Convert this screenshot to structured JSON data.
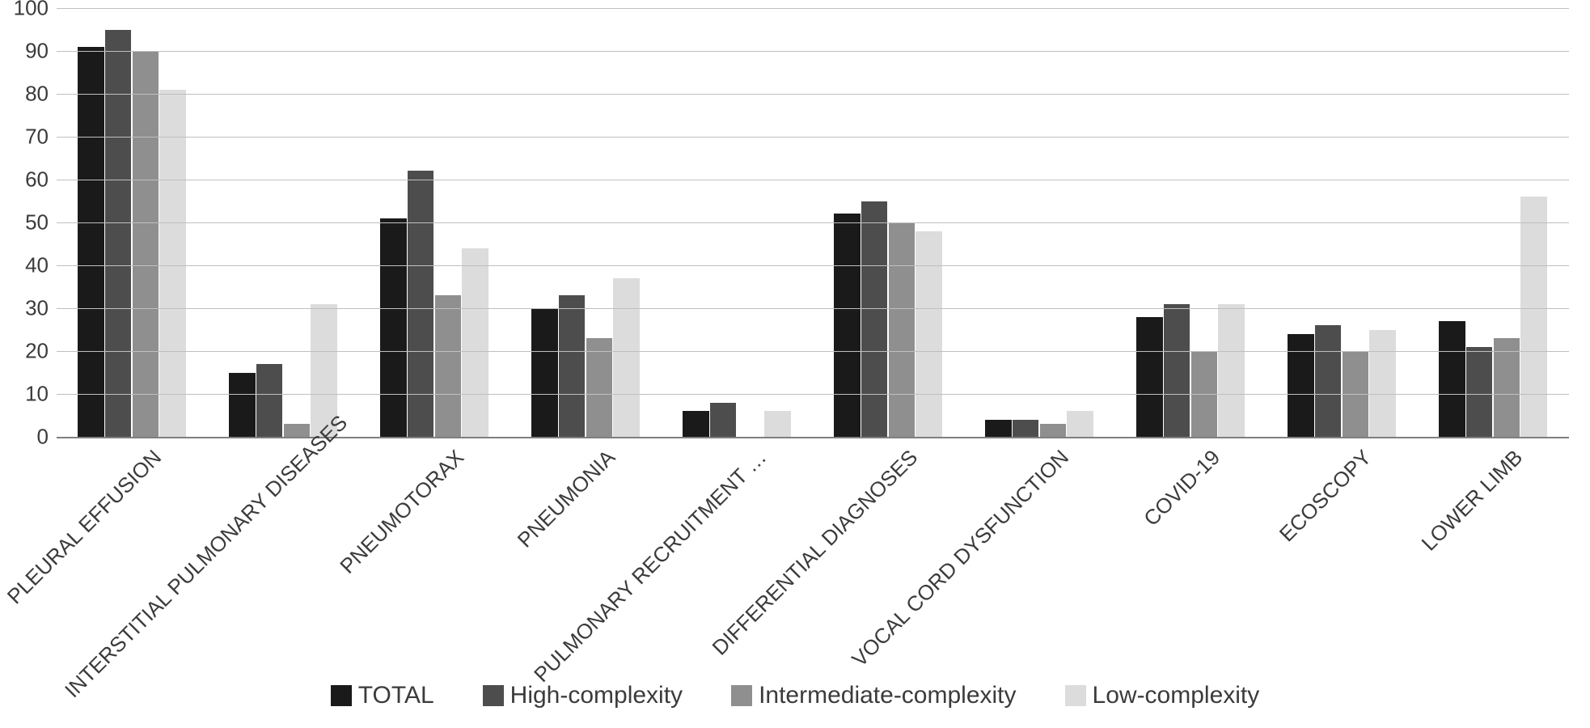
{
  "chart": {
    "type": "bar-grouped",
    "background_color": "#ffffff",
    "grid_color": "#bfbfbf",
    "axis_color": "#7f7f7f",
    "text_color": "#3b3b3b",
    "label_fontsize": 26,
    "legend_fontsize": 30,
    "ylim": [
      0,
      100
    ],
    "ytick_step": 10,
    "yticks": [
      0,
      10,
      20,
      30,
      40,
      50,
      60,
      70,
      80,
      90,
      100
    ],
    "categories": [
      "PLEURAL EFFUSION",
      "INTERSTITIAL PULMONARY DISEASES",
      "PNEUMOTORAX",
      "PNEUMONIA",
      "PULMONARY RECRUITMENT …",
      "DIFFERENTIAL DIAGNOSES",
      "VOCAL CORD DYSFUNCTION",
      "COVID-19",
      "ECOSCOPY",
      "LOWER LIMB"
    ],
    "series": [
      {
        "name": "TOTAL",
        "color": "#1a1a1a"
      },
      {
        "name": "High-complexity",
        "color": "#4d4d4d"
      },
      {
        "name": "Intermediate-complexity",
        "color": "#8f8f8f"
      },
      {
        "name": "Low-complexity",
        "color": "#dcdcdc"
      }
    ],
    "values": [
      [
        91,
        95,
        90,
        81
      ],
      [
        15,
        17,
        3,
        31
      ],
      [
        51,
        62,
        33,
        44
      ],
      [
        30,
        33,
        23,
        37
      ],
      [
        6,
        8,
        0,
        6
      ],
      [
        52,
        55,
        50,
        48
      ],
      [
        4,
        4,
        3,
        6
      ],
      [
        28,
        31,
        20,
        31
      ],
      [
        24,
        26,
        20,
        25
      ],
      [
        27,
        21,
        23,
        56
      ]
    ],
    "bar_width_ratio": 0.72,
    "group_gap_ratio": 0.28
  }
}
